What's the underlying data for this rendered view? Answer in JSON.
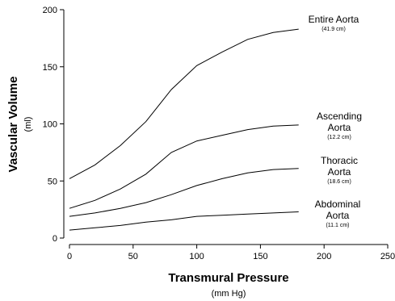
{
  "chart_data": {
    "type": "line",
    "xlabel": "Transmural Pressure",
    "xunit": "(mm Hg)",
    "ylabel": "Vascular Volume",
    "yunit": "(ml)",
    "xlim": [
      0,
      250
    ],
    "ylim": [
      0,
      200
    ],
    "xticks": [
      0,
      50,
      100,
      150,
      200,
      250
    ],
    "yticks": [
      0,
      50,
      100,
      150,
      200
    ],
    "grid": false,
    "series": [
      {
        "name_lines": [
          "Entire Aorta"
        ],
        "note": "(41.9 cm)",
        "x": [
          0,
          20,
          40,
          60,
          80,
          100,
          120,
          140,
          160,
          180
        ],
        "y": [
          52,
          64,
          81,
          102,
          130,
          151,
          163,
          174,
          180,
          183
        ]
      },
      {
        "name_lines": [
          "Ascending",
          "Aorta"
        ],
        "note": "(12.2 cm)",
        "x": [
          0,
          20,
          40,
          60,
          80,
          100,
          120,
          140,
          160,
          180
        ],
        "y": [
          26,
          33,
          43,
          56,
          75,
          85,
          90,
          95,
          98,
          99
        ]
      },
      {
        "name_lines": [
          "Thoracic",
          "Aorta"
        ],
        "note": "(18.6 cm)",
        "x": [
          0,
          20,
          40,
          60,
          80,
          100,
          120,
          140,
          160,
          180
        ],
        "y": [
          19,
          22,
          26,
          31,
          38,
          46,
          52,
          57,
          60,
          61
        ]
      },
      {
        "name_lines": [
          "Abdominal",
          "Aorta"
        ],
        "note": "(11.1 cm)",
        "x": [
          0,
          20,
          40,
          60,
          80,
          100,
          120,
          140,
          160,
          180
        ],
        "y": [
          7,
          9,
          11,
          14,
          16,
          19,
          20,
          21,
          22,
          23
        ]
      }
    ]
  }
}
